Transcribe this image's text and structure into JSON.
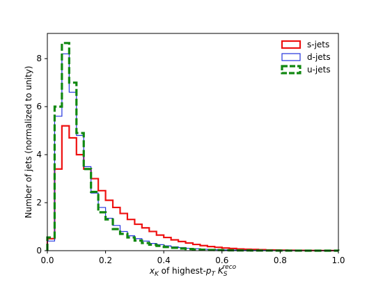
{
  "chart_data": {
    "type": "step-histogram",
    "xlabel": {
      "prefix": "x",
      "prefix_sub": "K",
      "middle": " of highest-",
      "pt": "p",
      "pt_sub": "T",
      "space": " ",
      "k": "K",
      "k_sub": "S",
      "k_sup": "reco"
    },
    "ylabel": "Number of jets (normalized to unity)",
    "xlim": [
      0.0,
      1.0
    ],
    "ylim": [
      0,
      9.05
    ],
    "xticks": [
      "0.0",
      "0.2",
      "0.4",
      "0.6",
      "0.8",
      "1.0"
    ],
    "xtick_values": [
      0.0,
      0.2,
      0.4,
      0.6,
      0.8,
      1.0
    ],
    "yticks": [
      "0",
      "2",
      "4",
      "6",
      "8"
    ],
    "ytick_values": [
      0,
      2,
      4,
      6,
      8
    ],
    "legend_position": "top-right",
    "bin_edges": [
      0.0,
      0.025,
      0.05,
      0.075,
      0.1,
      0.125,
      0.15,
      0.175,
      0.2,
      0.225,
      0.25,
      0.275,
      0.3,
      0.325,
      0.35,
      0.375,
      0.4,
      0.425,
      0.45,
      0.475,
      0.5,
      0.525,
      0.55,
      0.575,
      0.6,
      0.625,
      0.65,
      0.675,
      0.7,
      0.725,
      0.75,
      0.775,
      0.8,
      0.825,
      0.85,
      0.875,
      0.9,
      0.925,
      0.95,
      0.975,
      1.0
    ],
    "series": [
      {
        "name": "s-jets",
        "color": "#ee1111",
        "style": "solid",
        "values": [
          0.5,
          3.4,
          5.2,
          4.7,
          4.0,
          3.4,
          3.0,
          2.5,
          2.1,
          1.8,
          1.55,
          1.3,
          1.1,
          0.95,
          0.8,
          0.65,
          0.55,
          0.45,
          0.38,
          0.32,
          0.26,
          0.21,
          0.17,
          0.14,
          0.11,
          0.09,
          0.07,
          0.06,
          0.05,
          0.04,
          0.03,
          0.025,
          0.02,
          0.015,
          0.012,
          0.01,
          0.008,
          0.006,
          0.005,
          0.004
        ]
      },
      {
        "name": "d-jets",
        "color": "#2233dd",
        "style": "solid",
        "values": [
          0.4,
          5.6,
          8.2,
          6.6,
          4.8,
          3.5,
          2.4,
          1.8,
          1.35,
          1.05,
          0.8,
          0.62,
          0.5,
          0.4,
          0.3,
          0.25,
          0.2,
          0.16,
          0.13,
          0.1,
          0.08,
          0.06,
          0.05,
          0.04,
          0.03,
          0.025,
          0.02,
          0.015,
          0.012,
          0.01,
          0.008,
          0.006,
          0.005,
          0.004,
          0.003,
          0.002,
          0.002,
          0.001,
          0.001,
          0.001
        ]
      },
      {
        "name": "u-jets",
        "color": "#118811",
        "style": "dashed",
        "values": [
          0.55,
          6.0,
          8.65,
          7.0,
          4.9,
          3.4,
          2.45,
          1.6,
          1.3,
          0.9,
          0.7,
          0.55,
          0.42,
          0.32,
          0.25,
          0.2,
          0.15,
          0.12,
          0.09,
          0.07,
          0.05,
          0.04,
          0.03,
          0.025,
          0.02,
          0.015,
          0.012,
          0.01,
          0.008,
          0.006,
          0.005,
          0.004,
          0.003,
          0.002,
          0.002,
          0.001,
          0.001,
          0.001,
          0.001,
          0.001
        ]
      }
    ]
  }
}
